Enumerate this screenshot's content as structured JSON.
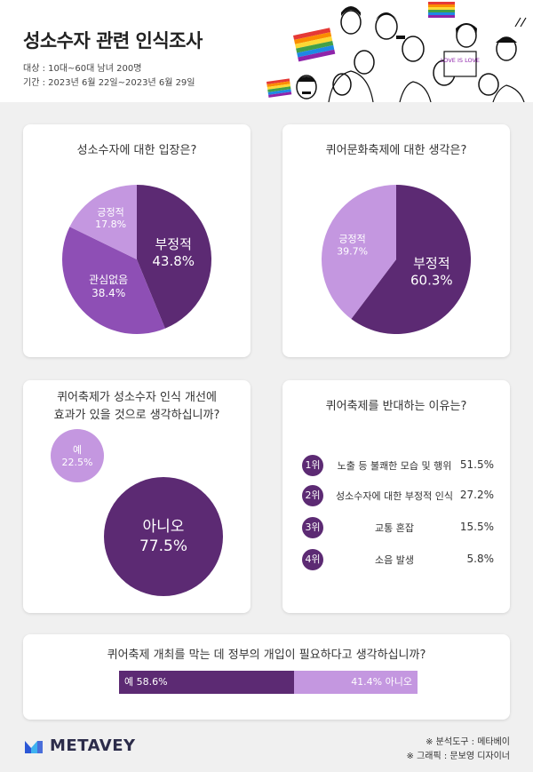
{
  "header": {
    "title": "성소수자 관련 인식조사",
    "target": "대상 : 10대~60대 남녀 200명",
    "period": "기간 : 2023년 6월 22일~2023년 6월 29일",
    "sign_text": "LOVE IS LOVE"
  },
  "colors": {
    "dark": "#5c2a73",
    "medium": "#8e4fb5",
    "light": "#c497e0",
    "background": "#f0f0f0"
  },
  "chart_data": [
    {
      "type": "pie",
      "title": "성소수자에 대한 입장은?",
      "slices": [
        {
          "label": "부정적",
          "value": 43.8,
          "display": "43.8%",
          "color": "#5c2a73"
        },
        {
          "label": "관심없음",
          "value": 38.4,
          "display": "38.4%",
          "color": "#8e4fb5"
        },
        {
          "label": "긍정적",
          "value": 17.8,
          "display": "17.8%",
          "color": "#c497e0"
        }
      ]
    },
    {
      "type": "pie",
      "title": "퀴어문화축제에 대한 생각은?",
      "slices": [
        {
          "label": "부정적",
          "value": 60.3,
          "display": "60.3%",
          "color": "#5c2a73"
        },
        {
          "label": "긍정적",
          "value": 39.7,
          "display": "39.7%",
          "color": "#c497e0"
        }
      ]
    },
    {
      "type": "bubble",
      "title_line1": "퀴어축제가 성소수자 인식 개선에",
      "title_line2": "효과가 있을 것으로 생각하십니까?",
      "items": [
        {
          "label": "예",
          "value": 22.5,
          "display": "22.5%",
          "color": "#c497e0"
        },
        {
          "label": "아니오",
          "value": 77.5,
          "display": "77.5%",
          "color": "#5c2a73"
        }
      ]
    },
    {
      "type": "table",
      "title": "퀴어축제를 반대하는 이유는?",
      "rows": [
        {
          "rank": "1위",
          "label": "노출 등 불쾌한 모습 및 행위",
          "value": 51.5,
          "display": "51.5%"
        },
        {
          "rank": "2위",
          "label": "성소수자에 대한 부정적 인식",
          "value": 27.2,
          "display": "27.2%"
        },
        {
          "rank": "3위",
          "label": "교통 혼잡",
          "value": 15.5,
          "display": "15.5%"
        },
        {
          "rank": "4위",
          "label": "소음 발생",
          "value": 5.8,
          "display": "5.8%"
        }
      ]
    },
    {
      "type": "bar",
      "title": "퀴어축제 개최를 막는 데 정부의 개입이 필요하다고 생각하십니까?",
      "segments": [
        {
          "label": "예",
          "value": 58.6,
          "text": "예 58.6%",
          "color": "#5c2a73"
        },
        {
          "label": "아니오",
          "value": 41.4,
          "text": "41.4% 아니오",
          "color": "#c497e0"
        }
      ]
    }
  ],
  "footer": {
    "brand": "METAVEY",
    "tool_note": "※ 분석도구 : 메타베이",
    "graphic_note": "※ 그래픽 : 문보영 디자이너"
  }
}
